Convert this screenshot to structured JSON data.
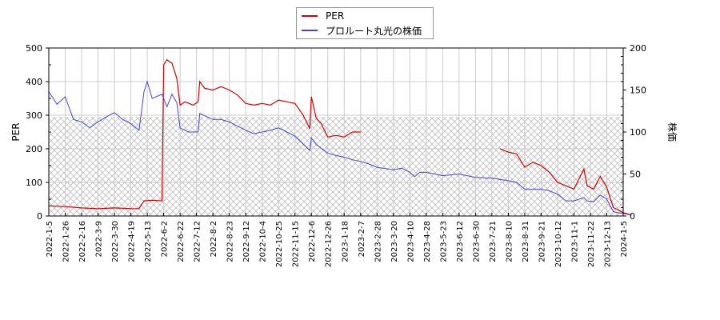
{
  "chart_data": {
    "type": "line",
    "title": "",
    "legend": [
      {
        "name": "PER",
        "color": "#dd0000"
      },
      {
        "name": "プロルート丸光の株価",
        "color": "#4444dd"
      }
    ],
    "legend_position": "top-center",
    "xlabel": "",
    "ylabel_left": "PER",
    "ylabel_right": "株価",
    "ylim_left": [
      0,
      500
    ],
    "ylim_right": [
      0,
      200
    ],
    "yticks_left": [
      "0",
      "100",
      "200",
      "300",
      "400",
      "500"
    ],
    "yticks_right": [
      "0",
      "50",
      "100",
      "150",
      "200"
    ],
    "grid": true,
    "hatched_band_left": [
      0,
      295
    ],
    "x_tick_labels": [
      "2022-1-5",
      "2022-1-26",
      "2022-2-16",
      "2022-3-9",
      "2022-3-30",
      "2022-4-19",
      "2022-5-13",
      "2022-6-2",
      "2022-6-22",
      "2022-7-12",
      "2022-8-2",
      "2022-8-23",
      "2022-9-12",
      "2022-10-4",
      "2022-10-25",
      "2022-11-15",
      "2022-12-6",
      "2022-12-26",
      "2023-1-18",
      "2023-2-7",
      "2023-2-28",
      "2023-3-20",
      "2023-4-10",
      "2023-4-28",
      "2023-5-23",
      "2023-6-12",
      "2023-6-30",
      "2023-7-21",
      "2023-8-10",
      "2023-8-31",
      "2023-9-21",
      "2023-10-12",
      "2023-11-1",
      "2023-11-22",
      "2023-12-13",
      "2024-1-5"
    ],
    "series": [
      {
        "name": "PER",
        "axis": "left",
        "color": "#dd0000",
        "points": [
          [
            0,
            30
          ],
          [
            1,
            28
          ],
          [
            2,
            24
          ],
          [
            3,
            22
          ],
          [
            4,
            24
          ],
          [
            5,
            22
          ],
          [
            5.5,
            22
          ],
          [
            5.8,
            45
          ],
          [
            6.3,
            47
          ],
          [
            6.9,
            45
          ],
          [
            7.0,
            450
          ],
          [
            7.2,
            465
          ],
          [
            7.5,
            455
          ],
          [
            7.8,
            410
          ],
          [
            8.0,
            330
          ],
          [
            8.3,
            340
          ],
          [
            8.8,
            330
          ],
          [
            9.1,
            340
          ],
          [
            9.2,
            400
          ],
          [
            9.5,
            380
          ],
          [
            10,
            375
          ],
          [
            10.5,
            385
          ],
          [
            11,
            375
          ],
          [
            11.5,
            360
          ],
          [
            12,
            335
          ],
          [
            12.5,
            330
          ],
          [
            13,
            335
          ],
          [
            13.5,
            330
          ],
          [
            14,
            345
          ],
          [
            14.5,
            340
          ],
          [
            15,
            335
          ],
          [
            15.5,
            300
          ],
          [
            15.9,
            260
          ],
          [
            16.0,
            355
          ],
          [
            16.3,
            290
          ],
          [
            16.6,
            275
          ],
          [
            17,
            235
          ],
          [
            17.5,
            240
          ],
          [
            18,
            235
          ],
          [
            18.5,
            250
          ],
          [
            19.0,
            250
          ],
          [
            27.5,
            200
          ],
          [
            28,
            190
          ],
          [
            28.5,
            185
          ],
          [
            29.0,
            145
          ],
          [
            29.5,
            160
          ],
          [
            30,
            150
          ],
          [
            30.5,
            130
          ],
          [
            31,
            100
          ],
          [
            31.5,
            90
          ],
          [
            32,
            80
          ],
          [
            32.6,
            140
          ],
          [
            32.8,
            90
          ],
          [
            33.2,
            80
          ],
          [
            33.6,
            118
          ],
          [
            34,
            85
          ],
          [
            34.4,
            25
          ],
          [
            35,
            10
          ],
          [
            35.5,
            3
          ]
        ]
      },
      {
        "name": "プロルート丸光の株価",
        "axis": "right",
        "color": "#4444dd",
        "points": [
          [
            0,
            148
          ],
          [
            0.5,
            133
          ],
          [
            1,
            142
          ],
          [
            1.5,
            115
          ],
          [
            2,
            112
          ],
          [
            2.5,
            105
          ],
          [
            3,
            112
          ],
          [
            3.5,
            118
          ],
          [
            4,
            123
          ],
          [
            4.5,
            115
          ],
          [
            5,
            110
          ],
          [
            5.5,
            102
          ],
          [
            5.8,
            148
          ],
          [
            6.0,
            160
          ],
          [
            6.3,
            140
          ],
          [
            6.9,
            145
          ],
          [
            7.2,
            130
          ],
          [
            7.5,
            145
          ],
          [
            7.8,
            135
          ],
          [
            8.0,
            105
          ],
          [
            8.5,
            100
          ],
          [
            9.1,
            100
          ],
          [
            9.2,
            122
          ],
          [
            10,
            115
          ],
          [
            10.5,
            115
          ],
          [
            11,
            112
          ],
          [
            11.5,
            107
          ],
          [
            12,
            102
          ],
          [
            12.5,
            98
          ],
          [
            13,
            100
          ],
          [
            13.5,
            102
          ],
          [
            14,
            105
          ],
          [
            14.5,
            100
          ],
          [
            15,
            95
          ],
          [
            15.9,
            78
          ],
          [
            16.0,
            93
          ],
          [
            16.3,
            85
          ],
          [
            17,
            75
          ],
          [
            17.5,
            72
          ],
          [
            18,
            70
          ],
          [
            18.5,
            67
          ],
          [
            19,
            65
          ],
          [
            19.5,
            62
          ],
          [
            20,
            58
          ],
          [
            21,
            55
          ],
          [
            21.5,
            57
          ],
          [
            22,
            52
          ],
          [
            22.3,
            47
          ],
          [
            22.6,
            52
          ],
          [
            23,
            52
          ],
          [
            24,
            48
          ],
          [
            25,
            50
          ],
          [
            26,
            46
          ],
          [
            27,
            45
          ],
          [
            28,
            42
          ],
          [
            28.5,
            40
          ],
          [
            29,
            32
          ],
          [
            30,
            32
          ],
          [
            30.5,
            30
          ],
          [
            31,
            26
          ],
          [
            31.5,
            18
          ],
          [
            32,
            18
          ],
          [
            32.6,
            22
          ],
          [
            32.8,
            18
          ],
          [
            33.2,
            17
          ],
          [
            33.6,
            25
          ],
          [
            34,
            20
          ],
          [
            34.4,
            5
          ],
          [
            35,
            3
          ],
          [
            35.5,
            1
          ]
        ]
      }
    ]
  },
  "legend": {
    "items": [
      {
        "label": "PER",
        "color": "#dd0000"
      },
      {
        "label": "プロルート丸光の株価",
        "color": "#4444dd"
      }
    ]
  }
}
